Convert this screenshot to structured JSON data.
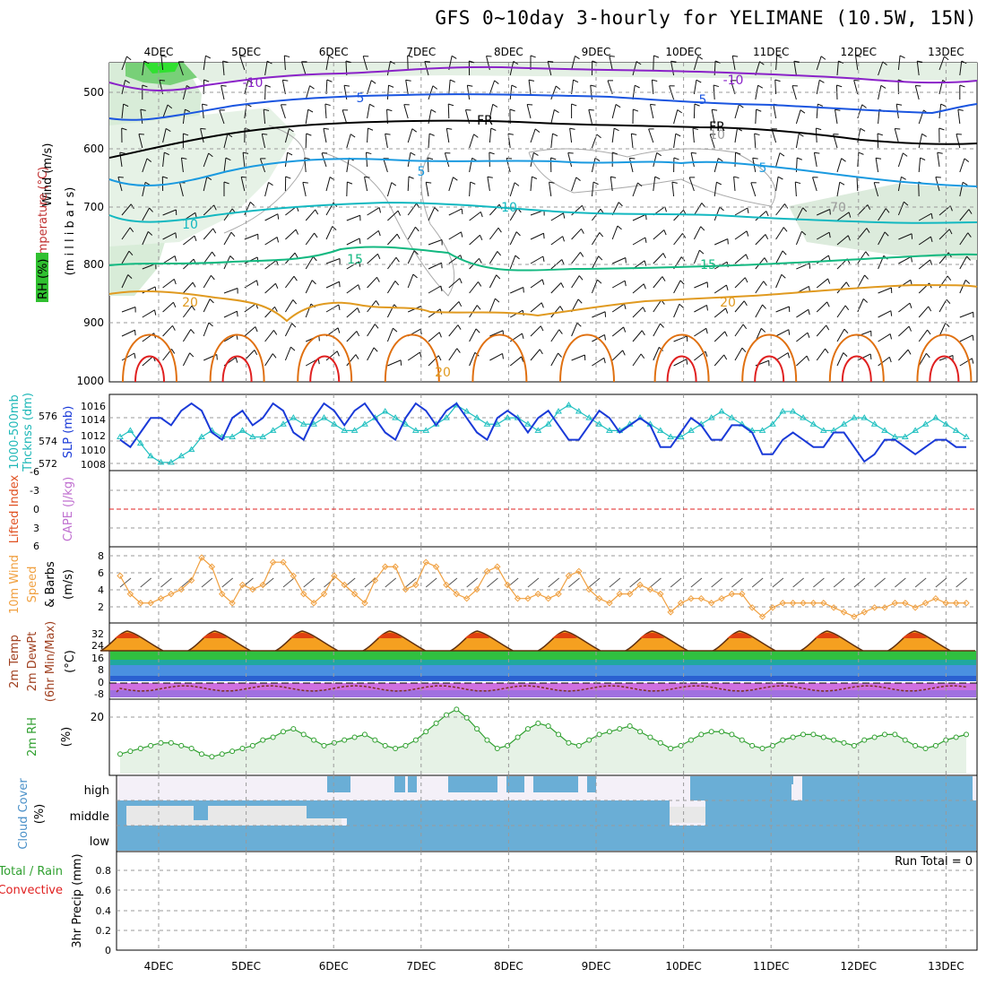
{
  "title": "GFS 0~10day 3-hourly for YELIMANE (10.5W, 15N)",
  "colors": {
    "grid": "#9a9a9a",
    "c_m10": "#8a22c8",
    "c_m5": "#1a55e0",
    "c_0": "#000000",
    "c_5": "#1a9ae0",
    "c_10": "#12b8c0",
    "c_15": "#12b880",
    "c_20": "#e09a20",
    "c_25": "#e07010",
    "c_30": "#e02020",
    "slp": "#1a3ad8",
    "thk": "#20c0c0",
    "wind10": "#f0a040",
    "rh": "#30a030",
    "cloud": "#6aaed6",
    "haze": "#e8e8ee"
  },
  "days": [
    "4DEC",
    "5DEC",
    "6DEC",
    "7DEC",
    "8DEC",
    "9DEC",
    "10DEC",
    "11DEC",
    "12DEC",
    "13DEC"
  ],
  "run_total": "Run Total = 0",
  "panels": {
    "upper": {
      "ylabel_wind": "Wind (m/s)",
      "ylabel_temp": "Temperature (°C)",
      "ylabel_rh": "RH (%)",
      "ylabel_mb": "(m i l l i b a r s)",
      "yticks": [
        "500",
        "600",
        "700",
        "800",
        "900",
        "1000"
      ],
      "contour_labels": [
        "-10",
        "-10",
        "5",
        "5",
        "FR",
        "FR",
        "5",
        "5",
        "10",
        "10",
        "15",
        "15",
        "20",
        "20",
        "20",
        "10",
        "70"
      ]
    },
    "slp": {
      "ylabel_a": "1000-500mb",
      "ylabel_b": "Thcknss (dm)",
      "ylabel_c": "SLP (mb)",
      "left_ticks": [
        "576",
        "574",
        "572"
      ],
      "right_ticks": [
        "1016",
        "1014",
        "1012",
        "1010",
        "1008"
      ]
    },
    "li": {
      "ylabel_a": "Lifted Index",
      "ylabel_b": "CAPE (J/kg)",
      "ticks": [
        "-6",
        "-3",
        "0",
        "3",
        "6"
      ]
    },
    "wind10": {
      "ylabel_a": "10m Wind",
      "ylabel_b": "Speed",
      "ylabel_c": "& Barbs",
      "ylabel_d": "(m/s)",
      "ticks": [
        "8",
        "6",
        "4",
        "2"
      ]
    },
    "temp": {
      "ylabel_a": "2m Temp",
      "ylabel_b": "2m DewPt",
      "ylabel_c": "(6hr Min/Max)",
      "ylabel_d": "(°C)",
      "ticks": [
        "32",
        "24",
        "16",
        "8",
        "0",
        "-8"
      ]
    },
    "rh": {
      "ylabel_a": "2m RH",
      "ylabel_b": "(%)",
      "ticks": [
        "20"
      ]
    },
    "cloud": {
      "ylabel_a": "Cloud Cover",
      "ylabel_b": "(%)",
      "levels": [
        "high",
        "middle",
        "low"
      ]
    },
    "precip": {
      "ylabel_a": "Total / Rain",
      "ylabel_b": "Convective",
      "ylabel_c": "3hr Precip (mm)",
      "ticks": [
        "0.8",
        "0.6",
        "0.4",
        "0.2",
        "0"
      ]
    }
  },
  "chart_data": [
    {
      "type": "line",
      "name": "sea level pressure",
      "units": "mb",
      "ylim": [
        1007,
        1017
      ],
      "values": [
        1011,
        1010,
        1012,
        1014,
        1014,
        1013,
        1015,
        1016,
        1015,
        1012,
        1011,
        1014,
        1015,
        1013,
        1014,
        1016,
        1015,
        1012,
        1011,
        1014,
        1016,
        1015,
        1013,
        1015,
        1016,
        1014,
        1012,
        1011,
        1014,
        1016,
        1015,
        1013,
        1015,
        1016,
        1014,
        1012,
        1011,
        1014,
        1015,
        1014,
        1012,
        1014,
        1015,
        1013,
        1011,
        1011,
        1013,
        1015,
        1014,
        1012,
        1013,
        1014,
        1013,
        1010,
        1010,
        1012,
        1014,
        1013,
        1011,
        1011,
        1013,
        1013,
        1012,
        1009,
        1009,
        1011,
        1012,
        1011,
        1010,
        1010,
        1012,
        1012,
        1010,
        1008,
        1009,
        1011,
        1011,
        1010,
        1009,
        1010,
        1011,
        1011,
        1010,
        1010
      ]
    },
    {
      "type": "line",
      "name": "1000-500mb thickness",
      "units": "dm",
      "ylim": [
        571.5,
        577.2
      ],
      "values": [
        574,
        574.5,
        573.5,
        572.5,
        572,
        572,
        572.5,
        573,
        574,
        574.5,
        574,
        574,
        574.5,
        574,
        574,
        574.5,
        575,
        575.5,
        575,
        575,
        575.5,
        575,
        574.5,
        574.5,
        575,
        575.5,
        576,
        575.5,
        575,
        574.5,
        574.5,
        575,
        575.5,
        576.5,
        576,
        575.5,
        575,
        575,
        575.5,
        575.5,
        575,
        574.5,
        575,
        576,
        576.5,
        576,
        575.5,
        575,
        574.5,
        574.5,
        575,
        575.5,
        575,
        574.5,
        574,
        574,
        574.5,
        575,
        575.5,
        576,
        575.5,
        575,
        574.5,
        574.5,
        575,
        576,
        576,
        575.5,
        575,
        574.5,
        574.5,
        575,
        575.5,
        575.5,
        575,
        574.5,
        574,
        574,
        574.5,
        575,
        575.5,
        575,
        574.5,
        574
      ]
    },
    {
      "type": "line",
      "name": "10m wind speed",
      "units": "m/s",
      "ylim": [
        1,
        9
      ],
      "values": [
        6,
        4,
        3,
        3,
        3.5,
        4,
        4.5,
        5.5,
        8,
        7,
        4,
        3,
        5,
        4.5,
        5,
        7.5,
        7.5,
        6,
        4,
        3,
        4,
        6,
        5,
        4,
        3,
        5.5,
        7,
        7,
        4.5,
        5,
        7.5,
        7,
        5,
        4,
        3.5,
        4.5,
        6.5,
        7,
        5,
        3.5,
        3.5,
        4,
        3.5,
        4,
        6,
        6.5,
        4.5,
        3.5,
        3,
        4,
        4,
        5,
        4.5,
        4,
        2,
        3,
        3.5,
        3.5,
        3,
        3.5,
        4,
        4,
        2.5,
        1.5,
        2.5,
        3,
        3,
        3,
        3,
        3,
        2.5,
        2,
        1.5,
        2,
        2.5,
        2.5,
        3,
        3,
        2.5,
        3,
        3.5,
        3,
        3,
        3
      ]
    },
    {
      "type": "line",
      "name": "2m relative humidity",
      "units": "%",
      "ylim": [
        0,
        26
      ],
      "values": [
        7,
        8,
        9,
        10,
        11,
        11,
        10,
        9,
        7,
        6,
        7,
        8,
        9,
        10,
        12,
        13,
        15,
        16,
        14,
        12,
        10,
        11,
        12,
        13,
        14,
        12,
        10,
        9,
        10,
        12,
        15,
        18,
        21,
        23,
        20,
        16,
        12,
        9,
        10,
        13,
        16,
        18,
        17,
        14,
        11,
        10,
        12,
        14,
        15,
        16,
        17,
        15,
        13,
        11,
        9,
        10,
        12,
        14,
        15,
        15,
        14,
        12,
        10,
        9,
        10,
        12,
        13,
        14,
        14,
        13,
        12,
        11,
        10,
        12,
        13,
        14,
        14,
        12,
        10,
        9,
        10,
        12,
        13,
        14
      ]
    }
  ]
}
